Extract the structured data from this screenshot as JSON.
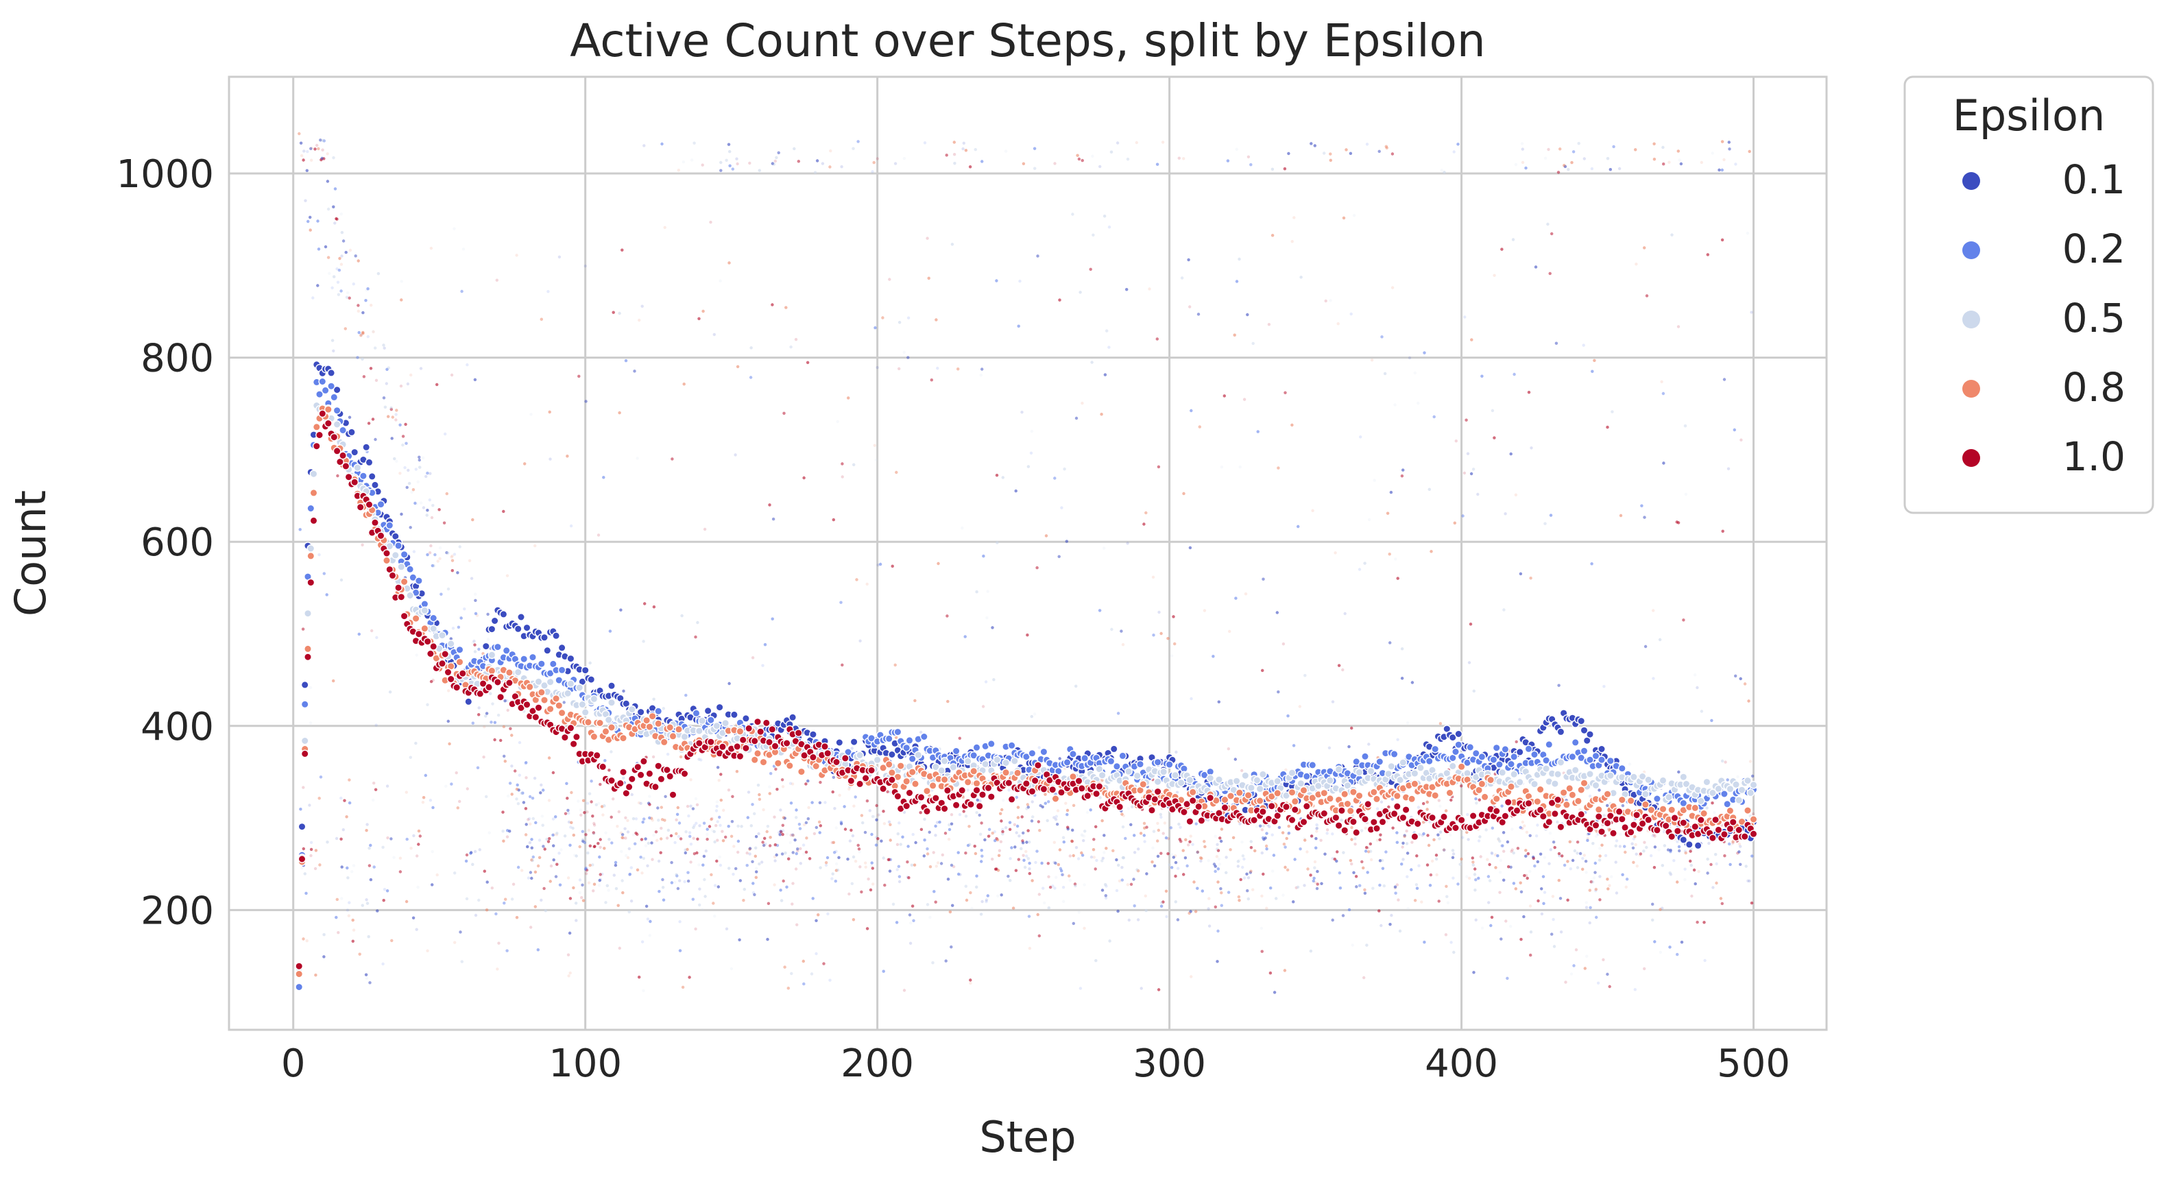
{
  "chart_data": {
    "type": "scatter",
    "title": "Active Count over Steps, split by Epsilon",
    "xlabel": "Step",
    "ylabel": "Count",
    "xlim": [
      -22,
      525
    ],
    "ylim": [
      70,
      1105
    ],
    "x_ticks": [
      0,
      100,
      200,
      300,
      400,
      500
    ],
    "y_ticks": [
      200,
      400,
      600,
      800,
      1000
    ],
    "grid": true,
    "legend": {
      "title": "Epsilon",
      "placement": "outside-top-right",
      "entries": [
        {
          "label": "0.1",
          "color": "#3b4cc0"
        },
        {
          "label": "0.2",
          "color": "#6282ea"
        },
        {
          "label": "0.5",
          "color": "#cdd9ec"
        },
        {
          "label": "0.8",
          "color": "#ef886b"
        },
        {
          "label": "1.0",
          "color": "#b40426"
        }
      ]
    },
    "series": [
      {
        "name": "0.1",
        "color": "#3b4cc0",
        "x": [
          2,
          5,
          8,
          10,
          15,
          20,
          25,
          30,
          40,
          50,
          60,
          70,
          80,
          90,
          100,
          110,
          120,
          130,
          140,
          150,
          160,
          170,
          180,
          190,
          200,
          220,
          240,
          260,
          280,
          300,
          320,
          340,
          360,
          380,
          395,
          405,
          420,
          437,
          460,
          480,
          500
        ],
        "y": [
          130,
          600,
          790,
          795,
          760,
          700,
          690,
          640,
          570,
          490,
          440,
          520,
          500,
          490,
          450,
          430,
          410,
          400,
          410,
          405,
          390,
          400,
          380,
          360,
          380,
          360,
          360,
          355,
          360,
          355,
          310,
          330,
          350,
          340,
          400,
          350,
          370,
          410,
          320,
          280,
          290
        ]
      },
      {
        "name": "0.2",
        "color": "#6282ea",
        "x": [
          2,
          5,
          8,
          10,
          15,
          20,
          25,
          30,
          40,
          50,
          60,
          70,
          80,
          90,
          100,
          110,
          120,
          130,
          140,
          150,
          160,
          170,
          180,
          190,
          200,
          220,
          240,
          260,
          280,
          300,
          320,
          340,
          360,
          380,
          400,
          420,
          440,
          460,
          480,
          500
        ],
        "y": [
          130,
          560,
          770,
          780,
          740,
          690,
          670,
          630,
          560,
          500,
          460,
          480,
          470,
          460,
          430,
          410,
          400,
          395,
          400,
          395,
          385,
          380,
          370,
          360,
          390,
          370,
          370,
          360,
          360,
          350,
          330,
          340,
          355,
          360,
          370,
          360,
          370,
          340,
          320,
          330
        ]
      },
      {
        "name": "0.5",
        "color": "#cdd9ec",
        "x": [
          2,
          5,
          8,
          10,
          15,
          20,
          25,
          30,
          40,
          50,
          60,
          70,
          80,
          90,
          100,
          110,
          120,
          130,
          140,
          150,
          160,
          170,
          180,
          190,
          200,
          220,
          240,
          260,
          280,
          300,
          320,
          340,
          360,
          380,
          400,
          420,
          440,
          460,
          480,
          500
        ],
        "y": [
          130,
          520,
          740,
          750,
          720,
          680,
          650,
          610,
          540,
          490,
          450,
          460,
          450,
          440,
          420,
          410,
          400,
          390,
          395,
          390,
          380,
          375,
          365,
          360,
          360,
          350,
          350,
          345,
          345,
          340,
          335,
          335,
          340,
          345,
          345,
          340,
          345,
          335,
          330,
          330
        ]
      },
      {
        "name": "0.8",
        "color": "#ef886b",
        "x": [
          2,
          5,
          8,
          10,
          15,
          20,
          25,
          30,
          40,
          50,
          60,
          70,
          80,
          90,
          100,
          110,
          120,
          130,
          140,
          150,
          160,
          170,
          180,
          190,
          200,
          220,
          240,
          260,
          280,
          300,
          320,
          340,
          360,
          380,
          400,
          420,
          440,
          460,
          480,
          500
        ],
        "y": [
          130,
          500,
          730,
          740,
          710,
          670,
          640,
          600,
          520,
          470,
          450,
          455,
          440,
          420,
          400,
          390,
          400,
          385,
          380,
          385,
          375,
          370,
          360,
          350,
          350,
          340,
          345,
          335,
          330,
          320,
          315,
          320,
          320,
          325,
          340,
          320,
          320,
          310,
          300,
          295
        ]
      },
      {
        "name": "1.0",
        "color": "#b40426",
        "x": [
          2,
          5,
          8,
          10,
          15,
          20,
          25,
          30,
          40,
          50,
          60,
          70,
          80,
          90,
          100,
          110,
          120,
          130,
          140,
          150,
          160,
          170,
          180,
          190,
          200,
          210,
          220,
          240,
          260,
          280,
          300,
          320,
          340,
          360,
          380,
          400,
          420,
          440,
          460,
          480,
          500
        ],
        "y": [
          130,
          480,
          700,
          740,
          700,
          660,
          640,
          600,
          510,
          470,
          440,
          450,
          420,
          400,
          370,
          340,
          350,
          340,
          380,
          370,
          390,
          390,
          370,
          350,
          340,
          320,
          320,
          330,
          340,
          320,
          315,
          300,
          305,
          300,
          300,
          295,
          310,
          300,
          290,
          290,
          285
        ]
      }
    ]
  }
}
